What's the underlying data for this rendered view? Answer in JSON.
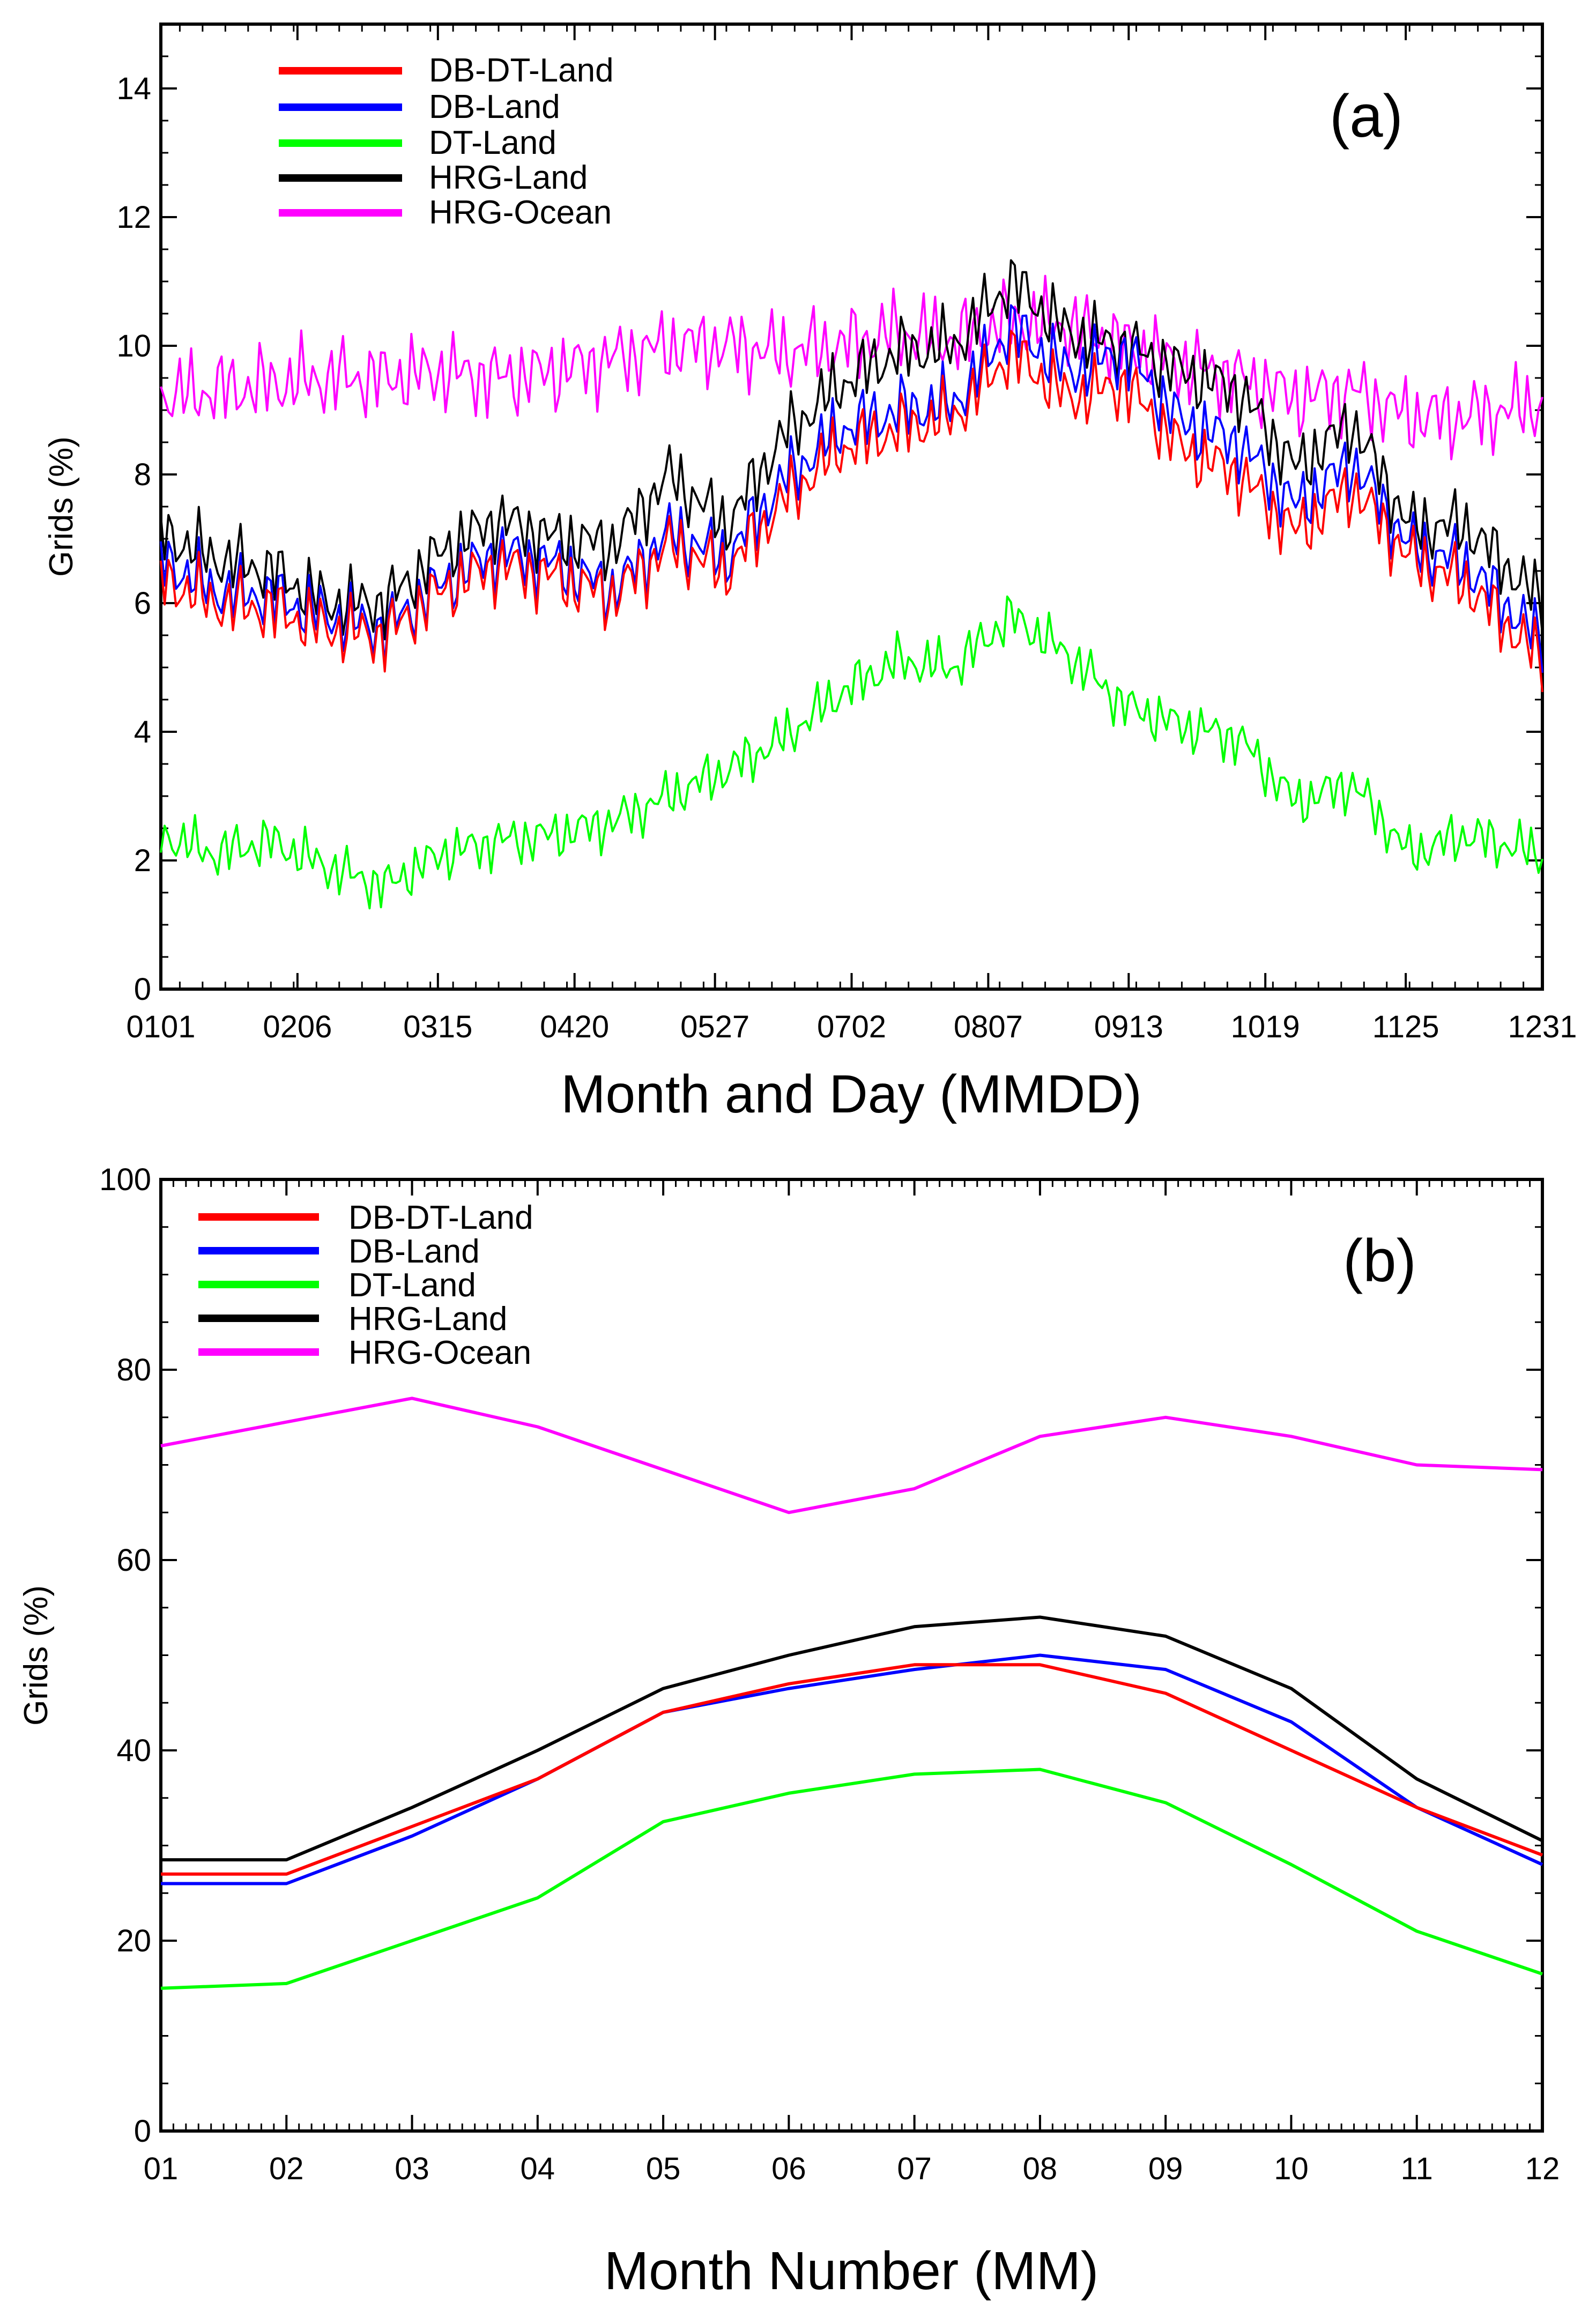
{
  "colors": {
    "DB-DT-Land": "#ff0000",
    "DB-Land": "#0000ff",
    "DT-Land": "#00ff00",
    "HRG-Land": "#000000",
    "HRG-Ocean": "#ff00ff"
  },
  "chart_data": [
    {
      "type": "line",
      "panel_label": "(a)",
      "xlabel": "Month and Day (MMDD)",
      "ylabel": "Grids (%)",
      "ylim": [
        0,
        15
      ],
      "yticks": [
        0,
        2,
        4,
        6,
        8,
        10,
        12,
        14
      ],
      "xlim": [
        1,
        365
      ],
      "xtick_labels": [
        "0101",
        "0206",
        "0315",
        "0420",
        "0527",
        "0702",
        "0807",
        "0913",
        "1019",
        "1125",
        "1231"
      ],
      "xtick_days": [
        1,
        37,
        74,
        110,
        147,
        183,
        219,
        256,
        292,
        329,
        365
      ],
      "legend": [
        "DB-DT-Land",
        "DB-Land",
        "DT-Land",
        "HRG-Land",
        "HRG-Ocean"
      ],
      "legend_position": "top-left",
      "series": [
        {
          "name": "DB-DT-Land",
          "day": [
            1,
            15,
            30,
            45,
            60,
            75,
            90,
            105,
            120,
            135,
            150,
            165,
            180,
            195,
            210,
            225,
            240,
            255,
            270,
            285,
            300,
            315,
            330,
            345,
            365
          ],
          "values": [
            6.4,
            6.0,
            5.9,
            5.6,
            5.5,
            6.2,
            6.6,
            6.4,
            6.1,
            6.9,
            6.5,
            7.6,
            8.4,
            8.7,
            8.9,
            9.9,
            9.2,
            9.4,
            8.4,
            8.0,
            7.1,
            7.8,
            6.7,
            6.3,
            5.1
          ]
        },
        {
          "name": "DB-Land",
          "day": [
            1,
            15,
            30,
            45,
            60,
            75,
            90,
            105,
            120,
            135,
            150,
            165,
            180,
            195,
            210,
            225,
            240,
            255,
            270,
            285,
            300,
            315,
            330,
            345,
            365
          ],
          "values": [
            6.7,
            6.2,
            6.1,
            5.8,
            5.6,
            6.3,
            6.8,
            6.6,
            6.2,
            7.1,
            6.7,
            7.9,
            8.7,
            9.0,
            9.1,
            10.3,
            9.6,
            9.9,
            8.8,
            8.5,
            7.5,
            8.2,
            6.9,
            6.6,
            5.4
          ]
        },
        {
          "name": "DT-Land",
          "day": [
            1,
            15,
            30,
            45,
            60,
            75,
            90,
            105,
            120,
            135,
            150,
            165,
            180,
            195,
            210,
            225,
            240,
            255,
            270,
            285,
            300,
            315,
            330,
            345,
            365
          ],
          "values": [
            2.4,
            2.1,
            2.3,
            1.9,
            1.6,
            2.1,
            2.3,
            2.4,
            2.6,
            3.0,
            3.4,
            3.9,
            4.6,
            5.1,
            5.0,
            5.8,
            5.2,
            4.4,
            4.1,
            3.9,
            2.9,
            3.2,
            2.1,
            2.4,
            2.1
          ]
        },
        {
          "name": "HRG-Land",
          "day": [
            1,
            15,
            30,
            45,
            60,
            75,
            90,
            105,
            120,
            135,
            150,
            165,
            180,
            195,
            210,
            225,
            240,
            255,
            270,
            285,
            300,
            315,
            330,
            345,
            365
          ],
          "values": [
            7.1,
            6.7,
            6.5,
            6.0,
            6.0,
            6.8,
            7.3,
            7.0,
            6.9,
            8.0,
            7.2,
            8.6,
            9.4,
            9.9,
            10.0,
            11.0,
            10.2,
            10.0,
            9.6,
            9.3,
            8.1,
            8.8,
            7.2,
            7.2,
            6.0
          ]
        },
        {
          "name": "HRG-Ocean",
          "day": [
            1,
            15,
            30,
            45,
            60,
            75,
            90,
            105,
            120,
            135,
            150,
            165,
            180,
            195,
            210,
            225,
            240,
            255,
            270,
            285,
            300,
            315,
            330,
            345,
            365
          ],
          "values": [
            9.2,
            9.3,
            9.4,
            9.5,
            9.5,
            9.6,
            9.5,
            9.6,
            9.8,
            10.0,
            10.0,
            9.9,
            10.0,
            10.2,
            10.1,
            10.4,
            10.3,
            10.0,
            9.7,
            9.5,
            9.2,
            9.3,
            8.9,
            8.9,
            9.1
          ]
        }
      ]
    },
    {
      "type": "line",
      "panel_label": "(b)",
      "xlabel": "Month Number (MM)",
      "ylabel": "Grids (%)",
      "ylim": [
        0,
        100
      ],
      "yticks": [
        0,
        20,
        40,
        60,
        80,
        100
      ],
      "categories": [
        "01",
        "02",
        "03",
        "04",
        "05",
        "06",
        "07",
        "08",
        "09",
        "10",
        "11",
        "12"
      ],
      "legend": [
        "DB-DT-Land",
        "DB-Land",
        "DT-Land",
        "HRG-Land",
        "HRG-Ocean"
      ],
      "legend_position": "top-left",
      "series": [
        {
          "name": "DB-DT-Land",
          "values": [
            27,
            27,
            32,
            37,
            44,
            47,
            49,
            49,
            46,
            40,
            34,
            29
          ]
        },
        {
          "name": "DB-Land",
          "values": [
            26,
            26,
            31,
            37,
            44,
            46.5,
            48.5,
            50,
            48.5,
            43,
            34,
            28
          ]
        },
        {
          "name": "DT-Land",
          "values": [
            15,
            15.5,
            20,
            24.5,
            32.5,
            35.5,
            37.5,
            38,
            34.5,
            28,
            21,
            16.5
          ]
        },
        {
          "name": "HRG-Land",
          "values": [
            28.5,
            28.5,
            34,
            40,
            46.5,
            50,
            53,
            54,
            52,
            46.5,
            37,
            30.5
          ]
        },
        {
          "name": "HRG-Ocean",
          "values": [
            72,
            74.5,
            77,
            74,
            69.5,
            65,
            67.5,
            73,
            75,
            73,
            70,
            69.5
          ]
        }
      ]
    }
  ]
}
